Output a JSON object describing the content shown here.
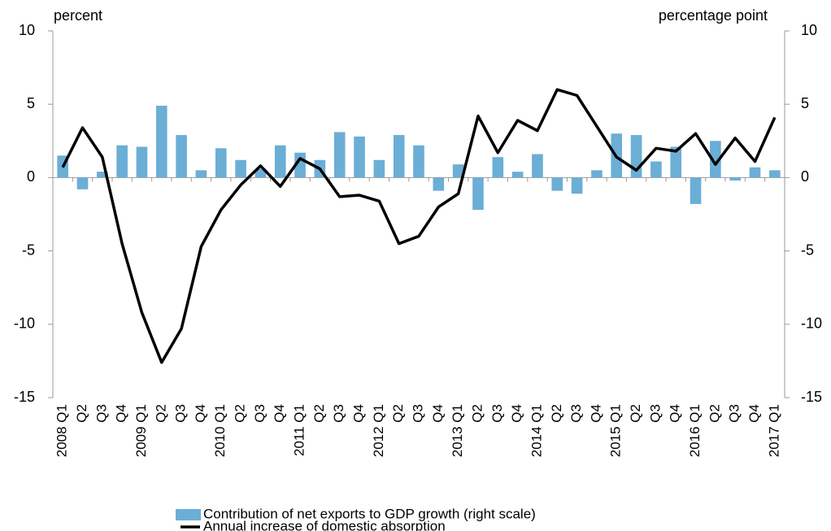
{
  "chart_data": {
    "type": "combo",
    "y_label": "percent",
    "y2_label": "percentage point",
    "categories": [
      "2008 Q1",
      "Q2",
      "Q3",
      "Q4",
      "2009 Q1",
      "Q2",
      "Q3",
      "Q4",
      "2010 Q1",
      "Q2",
      "Q3",
      "Q4",
      "2011 Q1",
      "Q2",
      "Q3",
      "Q4",
      "2012 Q1",
      "Q2",
      "Q3",
      "Q4",
      "2013 Q1",
      "Q2",
      "Q3",
      "Q4",
      "2014 Q1",
      "Q2",
      "Q3",
      "Q4",
      "2015 Q1",
      "Q2",
      "Q3",
      "Q4",
      "2016 Q1",
      "Q2",
      "Q3",
      "Q4",
      "2017 Q1"
    ],
    "series": [
      {
        "name": "Contribution of net exports to GDP growth (right scale)",
        "type": "bar",
        "axis": "y2",
        "color": "#6baed6",
        "values": [
          1.5,
          -0.8,
          0.4,
          2.2,
          2.1,
          4.9,
          2.9,
          0.5,
          2.0,
          1.2,
          0.6,
          2.2,
          1.7,
          1.2,
          3.1,
          2.8,
          1.2,
          2.9,
          2.2,
          -0.9,
          0.9,
          -2.2,
          1.4,
          0.4,
          1.6,
          -0.9,
          -1.1,
          0.5,
          3.0,
          2.9,
          1.1,
          2.1,
          -1.8,
          2.5,
          -0.2,
          0.7,
          0.5
        ]
      },
      {
        "name": "Annual increase of domestic absorption",
        "type": "line",
        "color": "#000000",
        "values": [
          0.7,
          3.4,
          1.4,
          -4.5,
          -9.2,
          -12.6,
          -10.3,
          -4.7,
          -2.2,
          -0.5,
          0.8,
          -0.6,
          1.3,
          0.6,
          -1.3,
          -1.2,
          -1.6,
          -4.5,
          -4.0,
          -2.0,
          -1.1,
          4.2,
          1.7,
          3.9,
          3.2,
          6.0,
          5.6,
          3.5,
          1.4,
          0.5,
          2.0,
          1.8,
          3.0,
          0.9,
          2.7,
          1.1,
          4.1
        ]
      }
    ],
    "ylim": [
      -15,
      10
    ],
    "yticks": [
      -15,
      -10,
      -5,
      0,
      5,
      10
    ],
    "y2lim": [
      -15,
      10
    ],
    "y2ticks": [
      -15,
      -10,
      -5,
      0,
      5,
      10
    ]
  }
}
